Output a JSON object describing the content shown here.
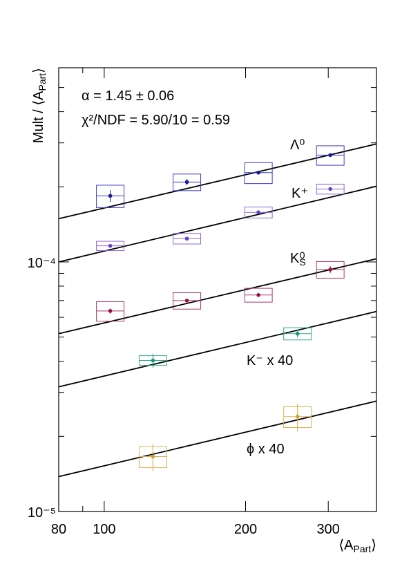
{
  "chart_data": {
    "type": "scatter",
    "annotations": [
      "α = 1.45 ± 0.06",
      "χ²/NDF = 5.90/10 = 0.59"
    ],
    "x_label": [
      [
        "⟨A",
        ""
      ],
      [
        "Part",
        "sub"
      ],
      [
        "⟩",
        ""
      ]
    ],
    "y_label": [
      [
        "Mult / ⟨A",
        ""
      ],
      [
        "Part",
        "sub"
      ],
      [
        "⟩",
        ""
      ]
    ],
    "log_x": true,
    "log_y": true,
    "xlim": [
      80,
      380
    ],
    "xticks": [
      80,
      100,
      200,
      300
    ],
    "xminorticks": [
      90
    ],
    "ylim": [
      1e-05,
      0.0006
    ],
    "yticks": [
      {
        "value": 1e-05,
        "label": "10⁻⁵"
      },
      {
        "value": 0.0001,
        "label": "10⁻⁴"
      }
    ],
    "yminorticks": [
      2e-05,
      3e-05,
      4e-05,
      5e-05,
      6e-05,
      7e-05,
      8e-05,
      9e-05,
      0.0002,
      0.0003,
      0.0004,
      0.0005
    ],
    "series": [
      {
        "name": "Λ⁰",
        "color": "#1a1a8f",
        "box_color": "#3a3acc",
        "x": [
          103,
          150,
          213,
          303
        ],
        "values": [
          0.000184,
          0.000209,
          0.000228,
          0.000268
        ],
        "errors": [
          1e-05,
          6e-06,
          4e-06,
          4e-06
        ],
        "sys": [
          1.9e-05,
          1.6e-05,
          2.2e-05,
          2.4e-05
        ],
        "fit": [
          0.000149,
          0.000297
        ]
      },
      {
        "name": "K⁺",
        "color": "#6a3ccc",
        "box_color": "#8a66d9",
        "x": [
          103,
          150,
          213,
          303
        ],
        "values": [
          0.000116,
          0.000124,
          0.000158,
          0.000196
        ],
        "errors": [
          2e-06,
          2e-06,
          2e-06,
          3e-06
        ],
        "sys": [
          5e-06,
          6e-06,
          8e-06,
          9e-06
        ],
        "fit": [
          0.0001,
          0.000201
        ]
      },
      {
        "name": [
          [
            "K",
            ""
          ],
          [
            "S",
            "sub"
          ],
          [
            "0",
            "sup"
          ]
        ],
        "color": "#99103d",
        "box_color": "#a8386a",
        "x": [
          103,
          150,
          213,
          303
        ],
        "values": [
          6.36e-05,
          7e-05,
          7.37e-05,
          9.32e-05
        ],
        "errors": [
          1.5e-06,
          1e-06,
          1e-06,
          3e-06
        ],
        "sys": [
          5.7e-06,
          5.3e-06,
          4.7e-06,
          7.1e-06
        ],
        "fit": [
          5.16e-05,
          0.000103
        ]
      },
      {
        "name": "K⁻ x 40",
        "color": "#119977",
        "box_color": "#33aa88",
        "x": [
          127,
          258
        ],
        "values": [
          4.03e-05,
          5.16e-05
        ],
        "errors": [
          2.6e-06,
          1.8e-06
        ],
        "sys": [
          1.8e-06,
          2.9e-06
        ],
        "fit": [
          3.16e-05,
          6.33e-05
        ]
      },
      {
        "name": "ϕ x 40",
        "color": "#d4a030",
        "box_color": "#ddb055",
        "x": [
          127,
          258
        ],
        "values": [
          1.66e-05,
          2.4e-05
        ],
        "errors": [
          2.1e-06,
          3e-06
        ],
        "sys": [
          1.6e-06,
          2.3e-06
        ],
        "fit": [
          1.38e-05,
          2.77e-05
        ]
      }
    ]
  }
}
